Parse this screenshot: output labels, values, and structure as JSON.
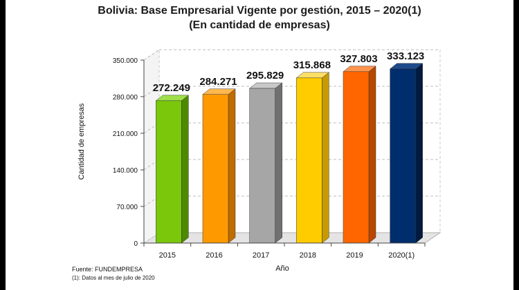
{
  "chart_data": {
    "type": "bar",
    "title": "Bolivia: Base Empresarial Vigente por gestión, 2015 – 2020(1)",
    "subtitle": "(En cantidad de empresas)",
    "xlabel": "Año",
    "ylabel": "Cantidad de empresas",
    "categories": [
      "2015",
      "2016",
      "2017",
      "2018",
      "2019",
      "2020(1)"
    ],
    "values": [
      272249,
      284271,
      295829,
      315868,
      327803,
      333123
    ],
    "value_labels": [
      "272.249",
      "284.271",
      "295.829",
      "315.868",
      "327.803",
      "333.123"
    ],
    "yticks": [
      0,
      70000,
      140000,
      210000,
      280000,
      350000
    ],
    "ytick_labels": [
      "0",
      "70.000",
      "140.000",
      "210.000",
      "280.000",
      "350.000"
    ],
    "ylim": [
      0,
      350000
    ],
    "grid": true,
    "legend": "none",
    "bar_colors": [
      "#7ac70c",
      "#ff9900",
      "#a6a6a6",
      "#ffcc00",
      "#ff6600",
      "#002d6b"
    ],
    "side_colors": [
      "#4d8a00",
      "#bf6c00",
      "#707070",
      "#c79b00",
      "#b84700",
      "#001a40"
    ],
    "top_colors": [
      "#9ee04a",
      "#ffb84d",
      "#c8c8c8",
      "#ffe066",
      "#ff944d",
      "#1f4a8a"
    ],
    "source": "Fuente:  FUNDEMPRESA",
    "note": "(1): Datos al mes de julio de 2020"
  }
}
